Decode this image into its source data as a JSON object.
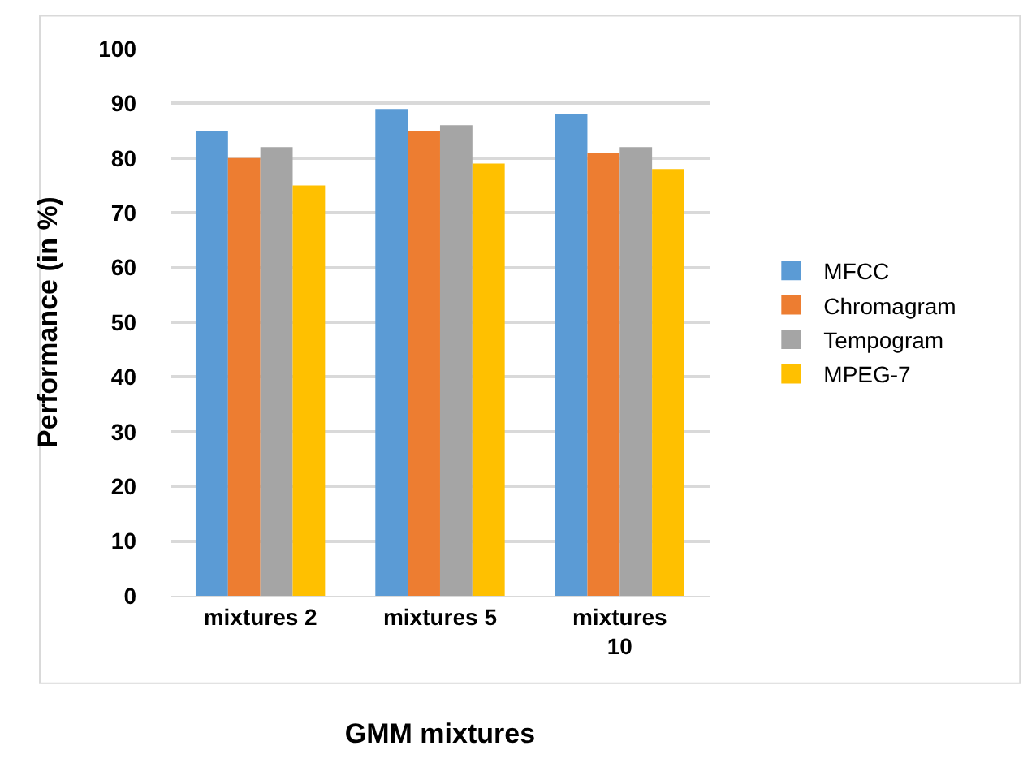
{
  "chart_data": {
    "type": "bar",
    "xlabel": "GMM mixtures",
    "ylabel": "Performance (in %)",
    "categories": [
      "mixtures 2",
      "mixtures 5",
      "mixtures 10"
    ],
    "series": [
      {
        "name": "MFCC",
        "color": "#5b9bd5",
        "values": [
          85,
          89,
          88
        ]
      },
      {
        "name": "Chromagram",
        "color": "#ed7d31",
        "values": [
          80,
          85,
          81
        ]
      },
      {
        "name": "Tempogram",
        "color": "#a5a5a5",
        "values": [
          82,
          86,
          82
        ]
      },
      {
        "name": "MPEG-7",
        "color": "#ffc000",
        "values": [
          75,
          79,
          78
        ]
      }
    ],
    "ylim": [
      0,
      100
    ],
    "yticks": [
      0,
      10,
      20,
      30,
      40,
      50,
      60,
      70,
      80,
      90,
      100
    ],
    "grid": "y",
    "legend": "right"
  }
}
